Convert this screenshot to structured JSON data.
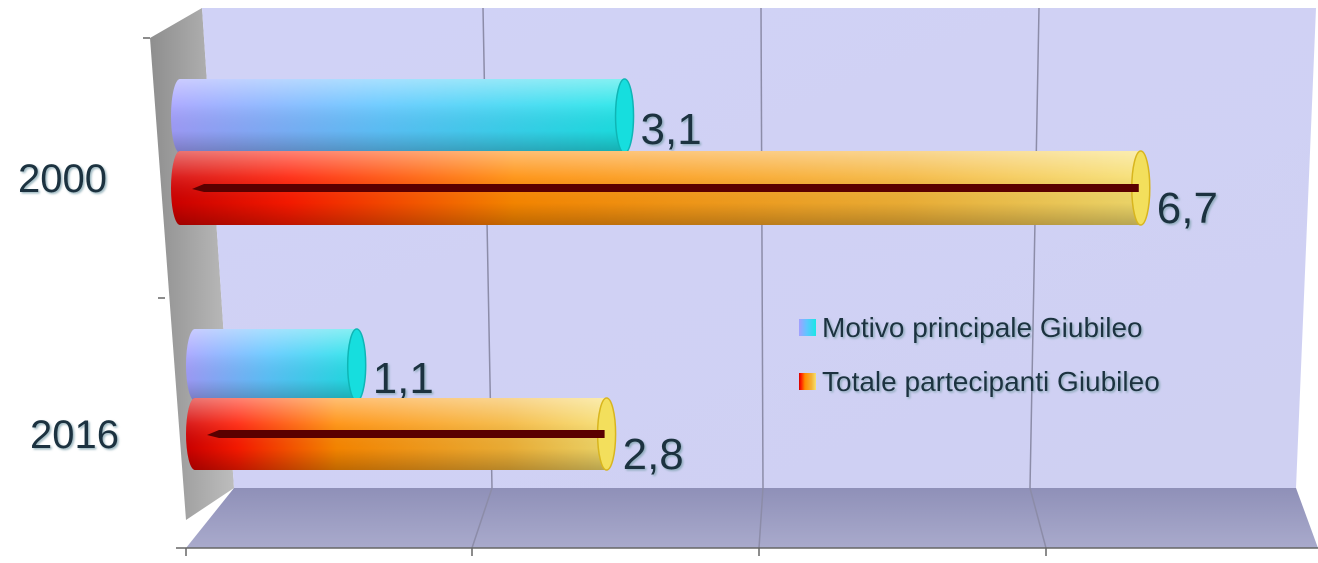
{
  "chart_data": {
    "type": "bar",
    "orientation": "horizontal",
    "categories": [
      "2000",
      "2016"
    ],
    "series": [
      {
        "name": "Motivo principale Giubileo",
        "values": [
          3.1,
          1.1
        ],
        "value_labels": [
          "3,1",
          "1,1"
        ],
        "colors": [
          "#9a9cff",
          "#1fd6d6"
        ]
      },
      {
        "name": "Totale partecipanti Giubileo",
        "values": [
          6.7,
          2.8
        ],
        "value_labels": [
          "6,7",
          "2,8"
        ],
        "colors": [
          "#e80000",
          "#f7d040"
        ]
      }
    ],
    "xlim": [
      0,
      8
    ],
    "grid": true,
    "legend_position": "right",
    "title": "",
    "xlabel": "",
    "ylabel": ""
  }
}
